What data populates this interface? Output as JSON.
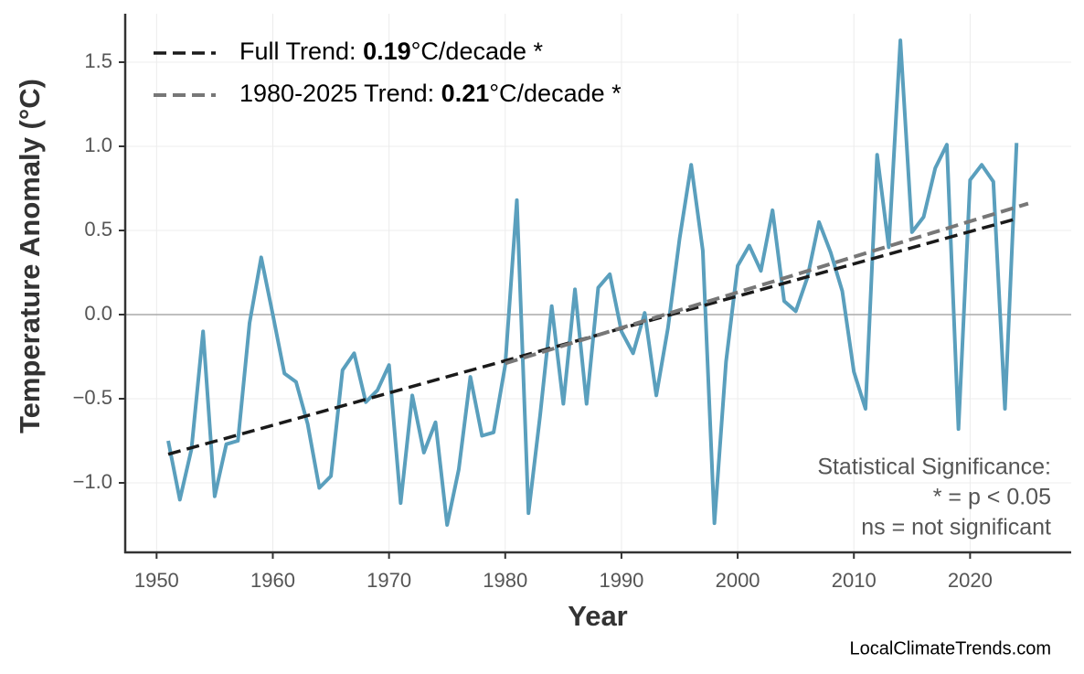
{
  "chart_data": {
    "type": "line",
    "x_label": "Year",
    "y_label": "Temperature Anomaly (°C)",
    "x": [
      1951,
      1952,
      1953,
      1954,
      1955,
      1956,
      1957,
      1958,
      1959,
      1960,
      1961,
      1962,
      1963,
      1964,
      1965,
      1966,
      1967,
      1968,
      1969,
      1970,
      1971,
      1972,
      1973,
      1974,
      1975,
      1976,
      1977,
      1978,
      1979,
      1980,
      1981,
      1982,
      1983,
      1984,
      1985,
      1986,
      1987,
      1988,
      1989,
      1990,
      1991,
      1992,
      1993,
      1994,
      1995,
      1996,
      1997,
      1998,
      1999,
      2000,
      2001,
      2002,
      2003,
      2004,
      2005,
      2006,
      2007,
      2008,
      2009,
      2010,
      2011,
      2012,
      2013,
      2014,
      2015,
      2016,
      2017,
      2018,
      2019,
      2020,
      2021,
      2022,
      2023,
      2024
    ],
    "series": [
      {
        "color": "#5a9fbd",
        "width": 4,
        "values": [
          -0.75,
          -1.1,
          -0.8,
          -0.1,
          -1.08,
          -0.77,
          -0.75,
          -0.05,
          0.34,
          0.0,
          -0.35,
          -0.4,
          -0.65,
          -1.03,
          -0.96,
          -0.33,
          -0.23,
          -0.52,
          -0.45,
          -0.3,
          -1.12,
          -0.48,
          -0.82,
          -0.64,
          -1.25,
          -0.92,
          -0.37,
          -0.72,
          -0.7,
          -0.3,
          0.68,
          -1.18,
          -0.6,
          0.05,
          -0.53,
          0.15,
          -0.53,
          0.16,
          0.24,
          -0.1,
          -0.23,
          0.01,
          -0.48,
          -0.08,
          0.45,
          0.89,
          0.38,
          -1.24,
          -0.28,
          0.29,
          0.41,
          0.26,
          0.62,
          0.08,
          0.02,
          0.22,
          0.55,
          0.37,
          0.14,
          -0.34,
          -0.56,
          0.95,
          0.4,
          1.63,
          0.49,
          0.58,
          0.87,
          1.01,
          -0.68,
          0.8,
          0.89,
          0.79,
          -0.56,
          1.02
        ]
      },
      {
        "name": [
          "Full Trend: ",
          "0.19",
          "°C/decade *"
        ],
        "emphasis": 1,
        "color": "#1a1a1a",
        "width": 3.5,
        "dashed": true,
        "x": [
          1951,
          2024
        ],
        "values": [
          -0.83,
          0.57
        ]
      },
      {
        "name": [
          "1980-2025 Trend: ",
          "0.21",
          "°C/decade *"
        ],
        "emphasis": 1,
        "color": "#777777",
        "width": 4,
        "dashed": true,
        "x": [
          1980,
          2025
        ],
        "values": [
          -0.29,
          0.66
        ]
      }
    ],
    "xlim": [
      1947.3,
      2028.7
    ],
    "ylim": [
      -1.413,
      1.788
    ],
    "xticks": [
      1950,
      1960,
      1970,
      1980,
      1990,
      2000,
      2010,
      2020
    ],
    "yticks": [
      {
        "value": -1,
        "label": "−1.0"
      },
      {
        "value": -0.5,
        "label": "−0.5"
      },
      {
        "value": 0,
        "label": "0.0"
      },
      0.5,
      {
        "value": 1,
        "label": "1.0"
      },
      1.5
    ],
    "zero_line": 0,
    "grid": true,
    "legend": "upper left",
    "annotation": [
      "Statistical Significance:",
      "* = p < 0.05",
      "ns = not significant"
    ],
    "source": "LocalClimateTrends.com"
  }
}
